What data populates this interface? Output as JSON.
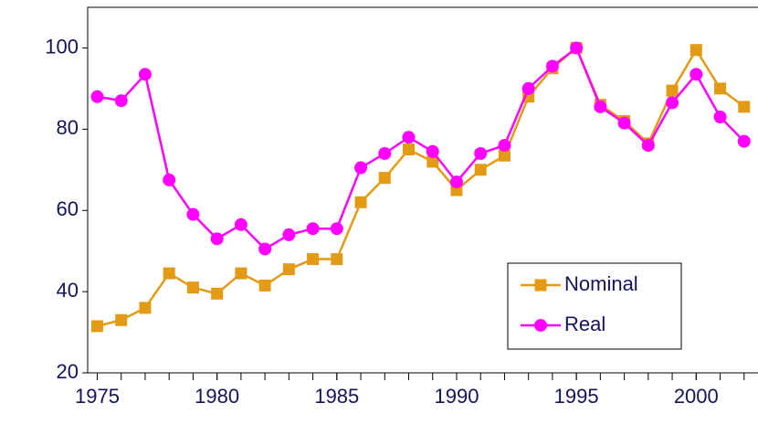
{
  "chart_data": {
    "type": "line",
    "x": [
      1975,
      1976,
      1977,
      1978,
      1979,
      1980,
      1981,
      1982,
      1983,
      1984,
      1985,
      1986,
      1987,
      1988,
      1989,
      1990,
      1991,
      1992,
      1993,
      1994,
      1995,
      1996,
      1997,
      1998,
      1999,
      2000,
      2001,
      2002
    ],
    "series": [
      {
        "name": "Nominal",
        "color": "#e39b16",
        "marker": "square",
        "values": [
          31.5,
          33,
          36,
          44.5,
          41,
          39.5,
          44.5,
          41.5,
          45.5,
          48,
          48,
          62,
          68,
          75,
          72,
          65,
          70,
          73.5,
          88,
          95,
          100,
          86,
          82,
          76.5,
          89.5,
          99.5,
          90,
          85.5
        ]
      },
      {
        "name": "Real",
        "color": "#ff00ff",
        "marker": "circle",
        "values": [
          88,
          87,
          93.5,
          67.5,
          59,
          53,
          56.5,
          50.5,
          54,
          55.5,
          55.5,
          70.5,
          74,
          78,
          74.5,
          67,
          74,
          76,
          90,
          95.5,
          100,
          85.5,
          81.5,
          76,
          86.5,
          93.5,
          83,
          77
        ]
      }
    ],
    "xlim": [
      1974.6,
      2003
    ],
    "xticks": [
      1975,
      1980,
      1985,
      1990,
      1995,
      2000
    ],
    "ylim": [
      20,
      110
    ],
    "yticks": [
      20,
      40,
      60,
      80,
      100
    ],
    "legend": "lower-right"
  }
}
